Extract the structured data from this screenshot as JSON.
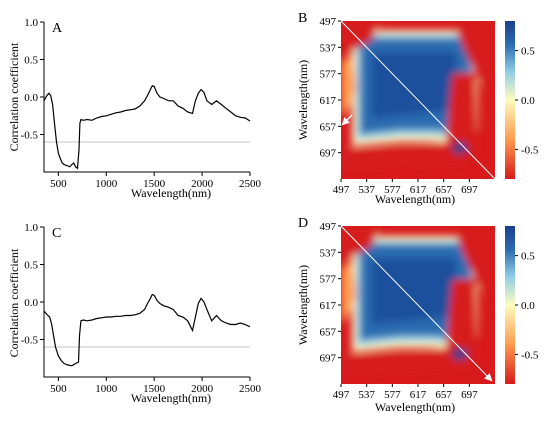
{
  "chart_data": [
    {
      "panel": "A",
      "type": "line",
      "xlabel": "Wavelength(nm)",
      "ylabel": "Correlation coefficient",
      "xlim": [
        350,
        2500
      ],
      "ylim": [
        -1.0,
        1.0
      ],
      "xticks": [
        500,
        1000,
        1500,
        2000,
        2500
      ],
      "xtick_labels": [
        "500",
        "1000",
        "1500",
        "2000",
        "2500"
      ],
      "yticks": [
        1.0,
        0.5,
        0.0,
        -0.5
      ],
      "ytick_labels": [
        "1.0",
        "0.5",
        "0.0",
        "-0.5"
      ],
      "reference_line_y": -0.6,
      "series": [
        {
          "values": [
            [
              350,
              -0.05
            ],
            [
              380,
              0.02
            ],
            [
              400,
              0.05
            ],
            [
              420,
              0.02
            ],
            [
              440,
              -0.1
            ],
            [
              460,
              -0.35
            ],
            [
              480,
              -0.6
            ],
            [
              500,
              -0.75
            ],
            [
              520,
              -0.82
            ],
            [
              540,
              -0.88
            ],
            [
              560,
              -0.9
            ],
            [
              580,
              -0.91
            ],
            [
              600,
              -0.92
            ],
            [
              620,
              -0.93
            ],
            [
              640,
              -0.9
            ],
            [
              660,
              -0.88
            ],
            [
              680,
              -0.93
            ],
            [
              700,
              -0.95
            ],
            [
              715,
              -0.7
            ],
            [
              725,
              -0.35
            ],
            [
              735,
              -0.3
            ],
            [
              760,
              -0.31
            ],
            [
              800,
              -0.3
            ],
            [
              850,
              -0.31
            ],
            [
              900,
              -0.28
            ],
            [
              950,
              -0.26
            ],
            [
              1000,
              -0.25
            ],
            [
              1050,
              -0.23
            ],
            [
              1100,
              -0.21
            ],
            [
              1150,
              -0.2
            ],
            [
              1200,
              -0.18
            ],
            [
              1250,
              -0.17
            ],
            [
              1300,
              -0.16
            ],
            [
              1350,
              -0.12
            ],
            [
              1400,
              -0.05
            ],
            [
              1430,
              0.02
            ],
            [
              1460,
              0.1
            ],
            [
              1480,
              0.15
            ],
            [
              1500,
              0.14
            ],
            [
              1530,
              0.05
            ],
            [
              1560,
              0.0
            ],
            [
              1600,
              -0.02
            ],
            [
              1650,
              -0.05
            ],
            [
              1700,
              -0.05
            ],
            [
              1750,
              -0.12
            ],
            [
              1800,
              -0.15
            ],
            [
              1850,
              -0.2
            ],
            [
              1900,
              -0.22
            ],
            [
              1930,
              -0.05
            ],
            [
              1960,
              0.05
            ],
            [
              1990,
              0.1
            ],
            [
              2020,
              0.06
            ],
            [
              2050,
              -0.05
            ],
            [
              2100,
              -0.1
            ],
            [
              2150,
              -0.05
            ],
            [
              2200,
              -0.1
            ],
            [
              2250,
              -0.15
            ],
            [
              2300,
              -0.2
            ],
            [
              2350,
              -0.25
            ],
            [
              2400,
              -0.27
            ],
            [
              2450,
              -0.28
            ],
            [
              2500,
              -0.32
            ]
          ]
        }
      ]
    },
    {
      "panel": "B",
      "type": "heatmap",
      "xlabel": "Wavelength(nm)",
      "ylabel": "Wavelength(nm)",
      "xtick_labels": [
        "497",
        "537",
        "577",
        "617",
        "657",
        "697"
      ],
      "ytick_labels": [
        "497",
        "537",
        "577",
        "617",
        "657",
        "697"
      ],
      "axis_range": [
        497,
        737
      ],
      "colorbar_ticks": [
        0.5,
        0.0,
        -0.5
      ],
      "colorbar_tick_labels": [
        "0.5",
        "0.0",
        "-0.5"
      ],
      "colorbar_range": [
        -0.8,
        0.8
      ],
      "colors": [
        "#d71a1c",
        "#fe9a4d",
        "#fefcbf",
        "#8fcde6",
        "#2c6cb0",
        "#1a3f8c"
      ],
      "annotation": "diagonal line from 497 to 737 with arrow near (497, 657)"
    },
    {
      "panel": "C",
      "type": "line",
      "xlabel": "Wavelength(nm)",
      "ylabel": "Correlation coefficient",
      "xlim": [
        350,
        2500
      ],
      "ylim": [
        -1.0,
        1.0
      ],
      "xticks": [
        500,
        1000,
        1500,
        2000,
        2500
      ],
      "xtick_labels": [
        "500",
        "1000",
        "1500",
        "2000",
        "2500"
      ],
      "yticks": [
        1.0,
        0.5,
        0.0,
        -0.5
      ],
      "ytick_labels": [
        "1.0",
        "0.5",
        "0.0",
        "-0.5"
      ],
      "reference_line_y": -0.6,
      "series": [
        {
          "values": [
            [
              350,
              -0.12
            ],
            [
              370,
              -0.15
            ],
            [
              390,
              -0.18
            ],
            [
              410,
              -0.2
            ],
            [
              430,
              -0.3
            ],
            [
              450,
              -0.45
            ],
            [
              470,
              -0.6
            ],
            [
              500,
              -0.72
            ],
            [
              530,
              -0.78
            ],
            [
              560,
              -0.82
            ],
            [
              600,
              -0.84
            ],
            [
              640,
              -0.85
            ],
            [
              680,
              -0.82
            ],
            [
              710,
              -0.8
            ],
            [
              720,
              -0.45
            ],
            [
              735,
              -0.25
            ],
            [
              760,
              -0.24
            ],
            [
              800,
              -0.25
            ],
            [
              850,
              -0.24
            ],
            [
              900,
              -0.22
            ],
            [
              950,
              -0.21
            ],
            [
              1000,
              -0.2
            ],
            [
              1050,
              -0.2
            ],
            [
              1100,
              -0.19
            ],
            [
              1150,
              -0.19
            ],
            [
              1200,
              -0.18
            ],
            [
              1250,
              -0.18
            ],
            [
              1300,
              -0.17
            ],
            [
              1350,
              -0.15
            ],
            [
              1400,
              -0.1
            ],
            [
              1430,
              -0.02
            ],
            [
              1460,
              0.05
            ],
            [
              1480,
              0.1
            ],
            [
              1500,
              0.09
            ],
            [
              1530,
              0.02
            ],
            [
              1560,
              -0.02
            ],
            [
              1600,
              -0.05
            ],
            [
              1650,
              -0.07
            ],
            [
              1700,
              -0.1
            ],
            [
              1750,
              -0.18
            ],
            [
              1800,
              -0.2
            ],
            [
              1850,
              -0.25
            ],
            [
              1900,
              -0.38
            ],
            [
              1930,
              -0.2
            ],
            [
              1960,
              -0.02
            ],
            [
              1990,
              0.05
            ],
            [
              2020,
              0.0
            ],
            [
              2050,
              -0.1
            ],
            [
              2100,
              -0.25
            ],
            [
              2150,
              -0.18
            ],
            [
              2200,
              -0.25
            ],
            [
              2250,
              -0.28
            ],
            [
              2300,
              -0.3
            ],
            [
              2350,
              -0.3
            ],
            [
              2400,
              -0.28
            ],
            [
              2450,
              -0.3
            ],
            [
              2500,
              -0.33
            ]
          ]
        }
      ]
    },
    {
      "panel": "D",
      "type": "heatmap",
      "xlabel": "Wavelength(nm)",
      "ylabel": "Wavelength(nm)",
      "xtick_labels": [
        "497",
        "537",
        "577",
        "617",
        "657",
        "697"
      ],
      "ytick_labels": [
        "497",
        "537",
        "577",
        "617",
        "657",
        "697"
      ],
      "axis_range": [
        497,
        737
      ],
      "colorbar_ticks": [
        0.5,
        0.0,
        -0.5
      ],
      "colorbar_tick_labels": [
        "0.5",
        "0.0",
        "-0.5"
      ],
      "colorbar_range": [
        -0.8,
        0.8
      ],
      "colors": [
        "#d71a1c",
        "#fe9a4d",
        "#fefcbf",
        "#8fcde6",
        "#2c6cb0",
        "#1a3f8c"
      ],
      "annotation": "diagonal line from 497 to 737 with arrow near (737, 737)"
    }
  ]
}
